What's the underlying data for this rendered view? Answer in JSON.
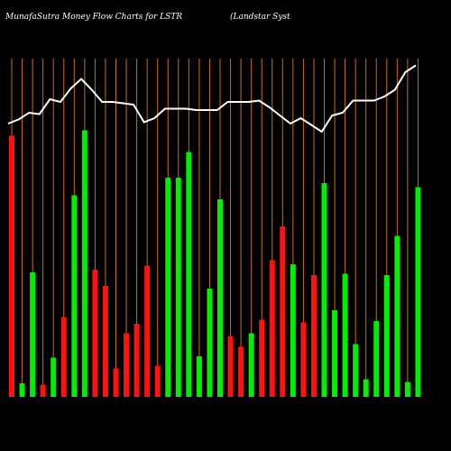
{
  "chart_data": {
    "type": "money-flow",
    "title": "MunafaSutra  Money Flow  Charts for LSTR",
    "subtitle": "(Landstar Syst",
    "bar_colors": {
      "up": "#00ee00",
      "down": "#ff1111"
    },
    "line_color": "#ffffff",
    "grid_color": "#c8700a",
    "direction": [
      "down",
      "up",
      "up",
      "down",
      "up",
      "down",
      "up",
      "up",
      "down",
      "down",
      "down",
      "down",
      "down",
      "down",
      "down",
      "up",
      "up",
      "up",
      "up",
      "up",
      "up",
      "down",
      "down",
      "up",
      "down",
      "down",
      "down",
      "up",
      "down",
      "down",
      "up",
      "up",
      "up",
      "up",
      "up",
      "up",
      "up",
      "up",
      "up",
      "up"
    ],
    "values": [
      193,
      10,
      92,
      9,
      29,
      59,
      149,
      197,
      94,
      82,
      21,
      47,
      54,
      97,
      23,
      162,
      162,
      181,
      30,
      80,
      146,
      45,
      37,
      47,
      57,
      101,
      126,
      98,
      55,
      90,
      158,
      64,
      91,
      39,
      13,
      56,
      90,
      119,
      11,
      155
    ],
    "line": [
      202,
      205,
      210,
      209,
      220,
      218,
      228,
      235,
      227,
      218,
      218,
      217,
      216,
      203,
      206,
      213,
      213,
      213,
      212,
      212,
      212,
      218,
      218,
      218,
      219,
      214,
      208,
      202,
      206,
      201,
      196,
      208,
      210,
      219,
      219,
      219,
      222,
      227,
      240,
      245
    ],
    "ylim": [
      0,
      250
    ]
  }
}
